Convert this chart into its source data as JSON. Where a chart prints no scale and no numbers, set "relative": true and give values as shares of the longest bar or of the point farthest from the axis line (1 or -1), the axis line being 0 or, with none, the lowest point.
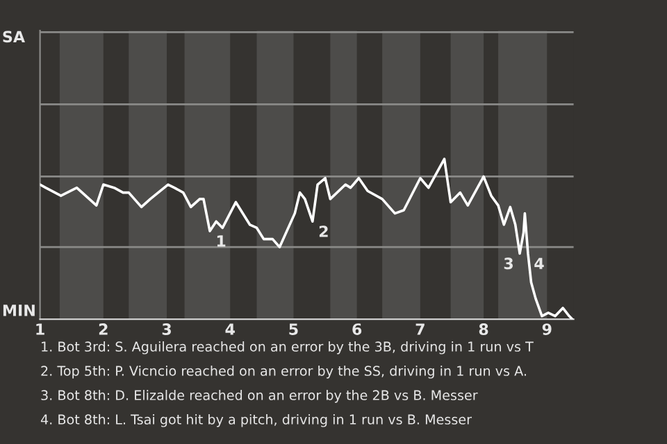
{
  "chart_data": {
    "type": "line",
    "relative": true,
    "x": [
      1.0,
      1.09,
      1.33,
      1.58,
      1.89,
      2.0,
      2.17,
      2.31,
      2.4,
      2.6,
      2.74,
      3.02,
      3.12,
      3.26,
      3.38,
      3.52,
      3.58,
      3.68,
      3.78,
      3.88,
      4.09,
      4.31,
      4.42,
      4.53,
      4.67,
      4.78,
      5.02,
      5.1,
      5.18,
      5.3,
      5.38,
      5.5,
      5.58,
      5.82,
      5.9,
      6.03,
      6.17,
      6.4,
      6.6,
      6.74,
      7.0,
      7.13,
      7.38,
      7.48,
      7.63,
      7.75,
      8.0,
      8.12,
      8.23,
      8.32,
      8.42,
      8.5,
      8.57,
      8.63,
      8.65,
      8.7,
      8.75,
      8.82,
      8.92,
      9.02,
      9.13,
      9.25,
      9.35,
      9.4
    ],
    "series": [
      {
        "color": "#ffffff",
        "values": [
          0.84,
          0.82,
          0.77,
          0.82,
          0.71,
          0.84,
          0.82,
          0.79,
          0.79,
          0.7,
          0.75,
          0.84,
          0.82,
          0.79,
          0.7,
          0.75,
          0.75,
          0.55,
          0.61,
          0.57,
          0.73,
          0.59,
          0.57,
          0.5,
          0.5,
          0.45,
          0.66,
          0.79,
          0.75,
          0.61,
          0.84,
          0.88,
          0.75,
          0.84,
          0.82,
          0.88,
          0.8,
          0.75,
          0.66,
          0.68,
          0.88,
          0.82,
          1,
          0.73,
          0.79,
          0.71,
          0.89,
          0.77,
          0.71,
          0.59,
          0.7,
          0.59,
          0.41,
          0.54,
          0.66,
          0.41,
          0.23,
          0.13,
          0.02,
          0.04,
          0.02,
          0.07,
          0.02,
          0
        ]
      }
    ],
    "xlim": [
      1,
      9.42
    ],
    "xticks": [
      1,
      2,
      3,
      4,
      5,
      6,
      7,
      8,
      9
    ],
    "ref_lines": [
      {
        "axis": "y",
        "value": 0.45,
        "color": "#8a8a88"
      },
      {
        "axis": "y",
        "value": 0.89,
        "color": "#8a8a88"
      },
      {
        "axis": "y",
        "value": 1.34,
        "color": "#8a8a88"
      },
      {
        "axis": "y",
        "value": 1.79,
        "color": "#8a8a88"
      }
    ],
    "line_style": "solid",
    "bands": [
      {
        "axis": "x",
        "from": 1.31,
        "to": 2,
        "color": "#4d4c4a"
      },
      {
        "axis": "x",
        "from": 2.4,
        "to": 3,
        "color": "#4d4c4a"
      },
      {
        "axis": "x",
        "from": 3.28,
        "to": 4,
        "color": "#4d4c4a"
      },
      {
        "axis": "x",
        "from": 4.42,
        "to": 5,
        "color": "#4d4c4a"
      },
      {
        "axis": "x",
        "from": 5.58,
        "to": 6,
        "color": "#4d4c4a"
      },
      {
        "axis": "x",
        "from": 6.4,
        "to": 7,
        "color": "#4d4c4a"
      },
      {
        "axis": "x",
        "from": 7.48,
        "to": 8,
        "color": "#4d4c4a"
      },
      {
        "axis": "x",
        "from": 8.23,
        "to": 9,
        "color": "#4d4c4a"
      }
    ],
    "annotations": [
      {
        "text": "1",
        "x": 3.68,
        "y": 0.55
      },
      {
        "text": "2",
        "x": 5.3,
        "y": 0.61
      },
      {
        "text": "3",
        "x": 8.57,
        "y": 0.41
      },
      {
        "text": "4",
        "x": 8.7,
        "y": 0.41
      },
      "SA",
      "MIN",
      "1. Bot 3rd: S. Aguilera reached on an error by the 3B, driving in 1 run vs T",
      "2. Top 5th: P. Vicncio reached on an error by the SS, driving in 1 run vs A.",
      "3. Bot 8th: D. Elizalde reached on an error by the 2B vs B. Messer",
      "4. Bot 8th: L. Tsai got hit by a pitch, driving in 1 run vs B. Messer"
    ]
  }
}
